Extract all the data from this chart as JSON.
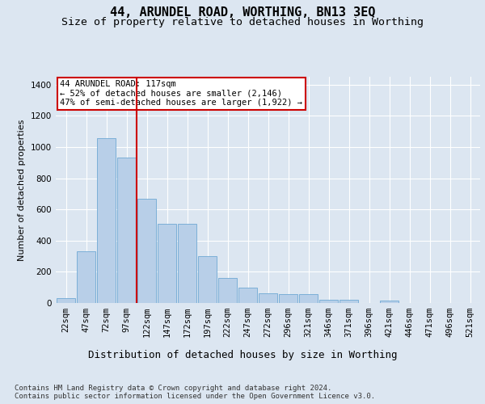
{
  "title": "44, ARUNDEL ROAD, WORTHING, BN13 3EQ",
  "subtitle": "Size of property relative to detached houses in Worthing",
  "xlabel": "Distribution of detached houses by size in Worthing",
  "ylabel": "Number of detached properties",
  "categories": [
    "22sqm",
    "47sqm",
    "72sqm",
    "97sqm",
    "122sqm",
    "147sqm",
    "172sqm",
    "197sqm",
    "222sqm",
    "247sqm",
    "272sqm",
    "296sqm",
    "321sqm",
    "346sqm",
    "371sqm",
    "396sqm",
    "421sqm",
    "446sqm",
    "471sqm",
    "496sqm",
    "521sqm"
  ],
  "values": [
    30,
    330,
    1055,
    930,
    670,
    510,
    510,
    300,
    160,
    100,
    60,
    55,
    55,
    22,
    22,
    0,
    18,
    0,
    0,
    0,
    0
  ],
  "bar_color": "#b8cfe8",
  "bar_edge_color": "#6fa8d4",
  "vline_position": 3.5,
  "vline_color": "#cc0000",
  "annotation_text": "44 ARUNDEL ROAD: 117sqm\n← 52% of detached houses are smaller (2,146)\n47% of semi-detached houses are larger (1,922) →",
  "annotation_box_color": "#ffffff",
  "annotation_box_edge_color": "#cc0000",
  "ylim": [
    0,
    1450
  ],
  "yticks": [
    0,
    200,
    400,
    600,
    800,
    1000,
    1200,
    1400
  ],
  "background_color": "#dce6f1",
  "plot_background_color": "#dce6f1",
  "grid_color": "#ffffff",
  "title_fontsize": 11,
  "subtitle_fontsize": 9.5,
  "xlabel_fontsize": 9,
  "ylabel_fontsize": 8,
  "tick_fontsize": 7.5,
  "footer_text": "Contains HM Land Registry data © Crown copyright and database right 2024.\nContains public sector information licensed under the Open Government Licence v3.0.",
  "footer_fontsize": 6.5
}
